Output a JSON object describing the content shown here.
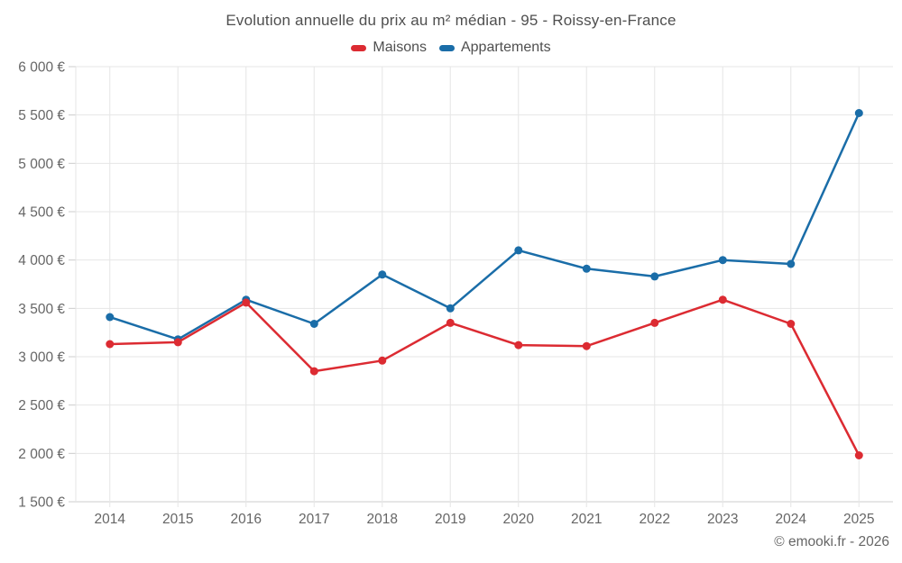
{
  "footer": "© emooki.fr - 2026",
  "chart_data": {
    "type": "line",
    "title": "Evolution annuelle du prix au m² médian - 95 - Roissy-en-France",
    "categories": [
      "2014",
      "2015",
      "2016",
      "2017",
      "2018",
      "2019",
      "2020",
      "2021",
      "2022",
      "2023",
      "2024",
      "2025"
    ],
    "series": [
      {
        "name": "Maisons",
        "color": "#dc2b32",
        "values": [
          3130,
          3150,
          3560,
          2850,
          2960,
          3350,
          3120,
          3110,
          3350,
          3590,
          3340,
          1980
        ]
      },
      {
        "name": "Appartements",
        "color": "#1a6da8",
        "values": [
          3410,
          3180,
          3590,
          3340,
          3850,
          3500,
          4100,
          3910,
          3830,
          4000,
          3960,
          5520
        ]
      }
    ],
    "xlabel": "",
    "ylabel": "",
    "ylim": [
      1500,
      6000
    ],
    "ytick_step": 500,
    "ytick_labels": [
      "1 500 €",
      "2 000 €",
      "2 500 €",
      "3 000 €",
      "3 500 €",
      "4 000 €",
      "4 500 €",
      "5 000 €",
      "5 500 €",
      "6 000 €"
    ],
    "grid": true,
    "legend_position": "top",
    "colors": {
      "grid": "#e6e6e6",
      "axis": "#cccccc",
      "tick_label": "#666666",
      "title": "#4f4f4f"
    }
  }
}
